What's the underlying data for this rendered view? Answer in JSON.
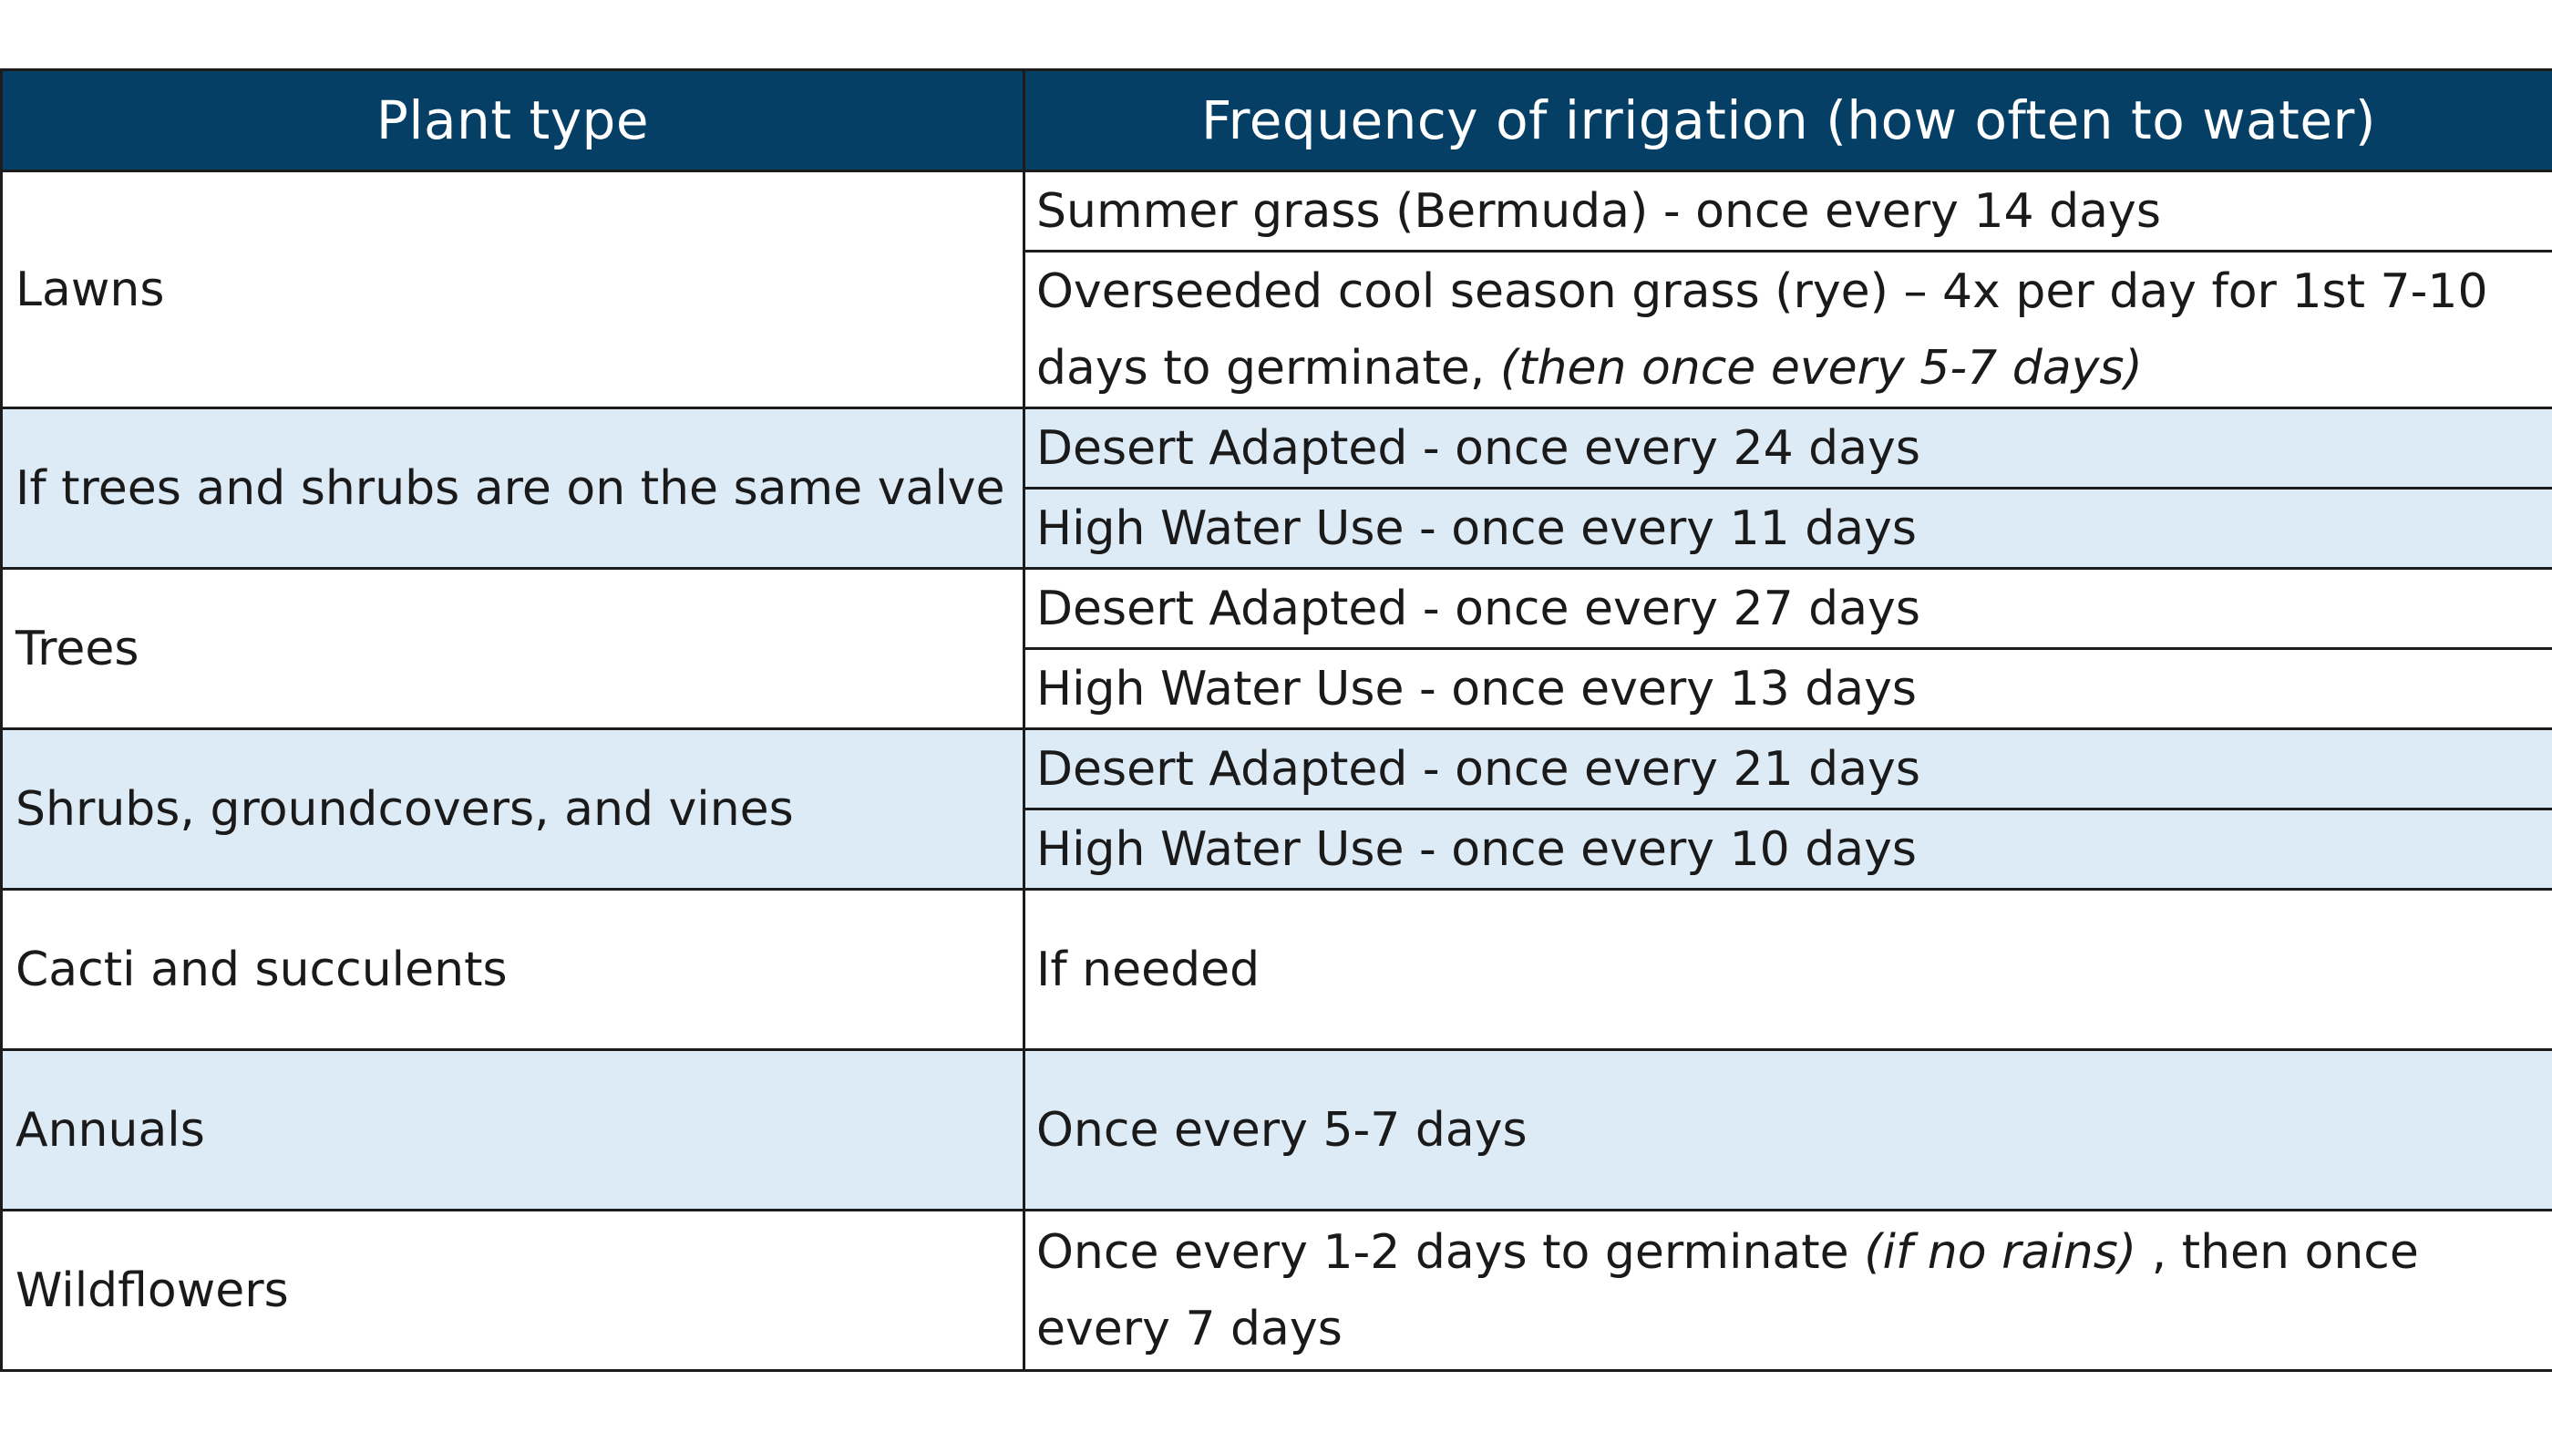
{
  "table": {
    "headers": [
      "Plant type",
      "Frequency of irrigation (how often to water)"
    ],
    "rows": [
      {
        "plant": "Lawns",
        "entries": [
          {
            "text": "Summer grass (Bermuda) - once every 14 days"
          },
          {
            "text": "Overseeded cool season grass (rye) – 4x per day for 1st 7-10 days to germinate, ",
            "italic": "(then once every 5-7 days)"
          }
        ]
      },
      {
        "plant": "If trees and shrubs are on the same valve",
        "entries": [
          {
            "text": "Desert Adapted - once every 24 days"
          },
          {
            "text": "High Water Use - once every 11 days"
          }
        ]
      },
      {
        "plant": "Trees",
        "entries": [
          {
            "text": "Desert Adapted - once every 27 days"
          },
          {
            "text": "High Water Use - once every 13 days"
          }
        ]
      },
      {
        "plant": "Shrubs, groundcovers, and vines",
        "entries": [
          {
            "text": "Desert Adapted - once every 21 days"
          },
          {
            "text": "High Water Use - once every 10 days"
          }
        ]
      },
      {
        "plant": "Cacti and succulents",
        "entries": [
          {
            "text": "If needed"
          }
        ]
      },
      {
        "plant": "Annuals",
        "entries": [
          {
            "text": "Once every 5-7 days"
          }
        ]
      },
      {
        "plant": "Wildflowers",
        "entries": [
          {
            "text": "Once every 1-2 days to germinate ",
            "italic": "(if no rains)",
            "after": " , then once every 7 days"
          }
        ]
      }
    ]
  },
  "colors": {
    "header_bg": "#053f65",
    "header_text": "#ffffff",
    "shaded_row": "#ddebf7",
    "border": "#1c1c1c"
  }
}
